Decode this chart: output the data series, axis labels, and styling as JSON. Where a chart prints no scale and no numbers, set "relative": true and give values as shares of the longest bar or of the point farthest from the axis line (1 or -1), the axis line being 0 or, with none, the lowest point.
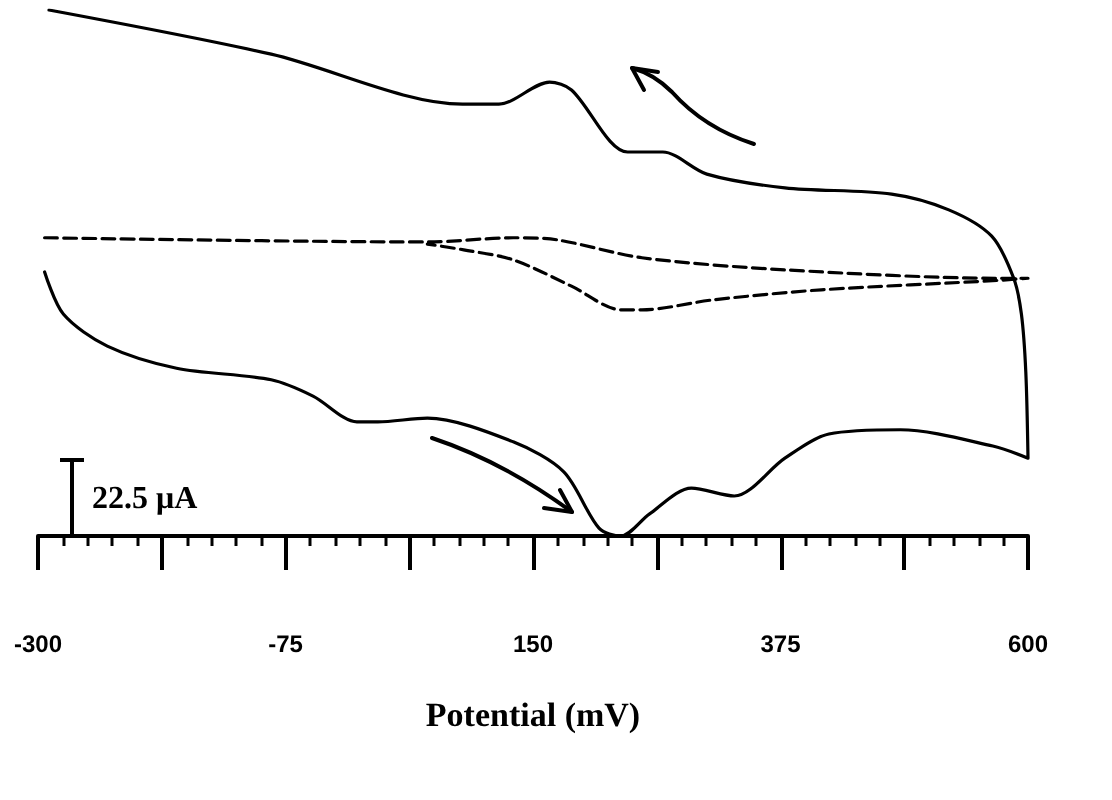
{
  "chart_data": {
    "type": "line",
    "xlabel": "Potential (mV)",
    "relative": true,
    "grid": false,
    "marker": "none",
    "annotations": [
      "22.5 μA"
    ],
    "xlim": [
      -300,
      600
    ],
    "xticks": [
      -300,
      {
        "value": -277.5,
        "label": null
      },
      {
        "value": -255,
        "label": null
      },
      {
        "value": -232.5,
        "label": null
      },
      {
        "value": -210,
        "label": null
      },
      {
        "value": -187.5,
        "label": null
      },
      {
        "value": -165,
        "label": null
      },
      {
        "value": -142.5,
        "label": null
      },
      {
        "value": -120,
        "label": null
      },
      {
        "value": -97.5,
        "label": null
      },
      -75,
      {
        "value": -52.5,
        "label": null
      },
      {
        "value": -30,
        "label": null
      },
      {
        "value": -7.5,
        "label": null
      },
      {
        "value": 15,
        "label": null
      },
      {
        "value": 37.5,
        "label": null
      },
      {
        "value": 60,
        "label": null
      },
      {
        "value": 82.5,
        "label": null
      },
      {
        "value": 105,
        "label": null
      },
      {
        "value": 127.5,
        "label": null
      },
      150,
      {
        "value": 172.5,
        "label": null
      },
      {
        "value": 195,
        "label": null
      },
      {
        "value": 217.5,
        "label": null
      },
      {
        "value": 240,
        "label": null
      },
      {
        "value": 262.5,
        "label": null
      },
      {
        "value": 285,
        "label": null
      },
      {
        "value": 307.5,
        "label": null
      },
      {
        "value": 330,
        "label": null
      },
      {
        "value": 352.5,
        "label": null
      },
      375,
      {
        "value": 397.5,
        "label": null
      },
      {
        "value": 420,
        "label": null
      },
      {
        "value": 442.5,
        "label": null
      },
      {
        "value": 465,
        "label": null
      },
      {
        "value": 487.5,
        "label": null
      },
      {
        "value": 510,
        "label": null
      },
      {
        "value": 532.5,
        "label": null
      },
      {
        "value": 555,
        "label": null
      },
      {
        "value": 577.5,
        "label": null
      },
      600
    ],
    "series": [
      {
        "color": "#000000",
        "line_style": "solid",
        "x": [
          -290,
          -88,
          86,
          119,
          165,
          185,
          236,
          268,
          308,
          379,
          476,
          528,
          567,
          587,
          594,
          598,
          600,
          568,
          484,
          419,
          379,
          333,
          294,
          256,
          230,
          210,
          178,
          132,
          54,
          9,
          -10,
          -50,
          -88,
          -174,
          -237,
          -277,
          -294
        ],
        "values": [
          1.0,
          0.916,
          0.821,
          0.821,
          0.863,
          0.848,
          0.73,
          0.73,
          0.688,
          0.662,
          0.65,
          0.62,
          0.57,
          0.49,
          0.422,
          0.312,
          0.148,
          0.171,
          0.202,
          0.194,
          0.148,
          0.076,
          0.091,
          0.042,
          0,
          0.015,
          0.122,
          0.179,
          0.224,
          0.217,
          0.217,
          0.266,
          0.297,
          0.319,
          0.361,
          0.422,
          0.502
        ]
      },
      {
        "color": "#000000",
        "line_style": "dashed",
        "x": [
          -294,
          54,
          132,
          172,
          249,
          379,
          574,
          600,
          574,
          412,
          314,
          249,
          230,
          185,
          132,
          87,
          54
        ],
        "values": [
          0.567,
          0.559,
          0.567,
          0.563,
          0.529,
          0.506,
          0.49,
          0.49,
          0.486,
          0.468,
          0.449,
          0.43,
          0.43,
          0.475,
          0.525,
          0.544,
          0.555
        ]
      }
    ]
  }
}
